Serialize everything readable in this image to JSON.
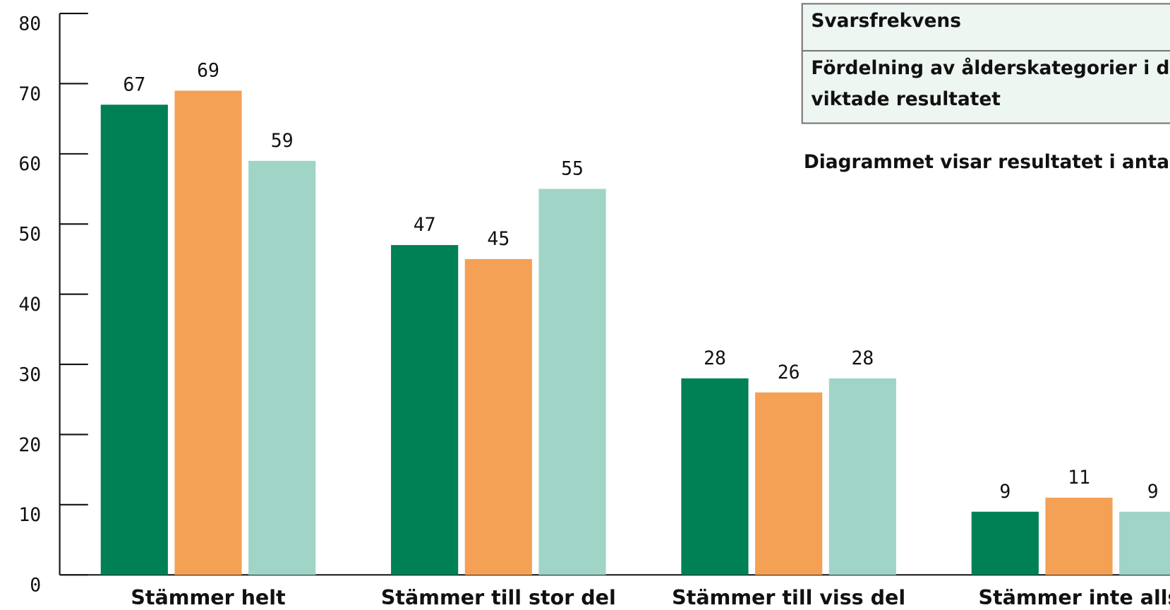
{
  "chart_data": {
    "type": "bar",
    "categories": [
      "Stämmer helt",
      "Stämmer till stor del",
      "Stämmer till viss del",
      "Stämmer inte alls"
    ],
    "series": [
      {
        "color": "#008055",
        "values": [
          67,
          47,
          28,
          9
        ]
      },
      {
        "color": "#f4a155",
        "values": [
          69,
          45,
          26,
          11
        ]
      },
      {
        "color": "#a0d4c6",
        "values": [
          59,
          55,
          28,
          9
        ]
      }
    ],
    "ylim": [
      0,
      80
    ],
    "yticks": [
      0,
      10,
      20,
      30,
      40,
      50,
      60,
      70,
      80
    ],
    "annotations": {
      "box_title": "Svarsfrekvens",
      "box_line1": "Fördelning av ålderskategorier i de",
      "box_line2": "viktade resultatet",
      "note": "Diagrammet visar resultatet i antal"
    }
  }
}
